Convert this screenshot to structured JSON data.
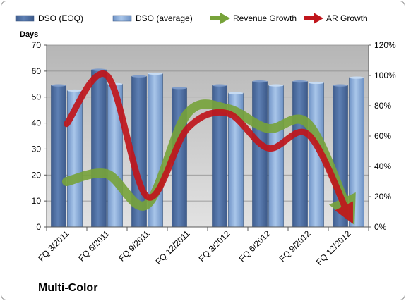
{
  "chart_data": {
    "type": "bar",
    "title": "",
    "footer_label": "Multi-Color",
    "y_left_label": "Days",
    "y_left_lim": [
      0,
      70
    ],
    "y_left_ticks": [
      0,
      10,
      20,
      30,
      40,
      50,
      60,
      70
    ],
    "y_right_lim": [
      0,
      120
    ],
    "y_right_ticks": [
      "0%",
      "20%",
      "40%",
      "60%",
      "80%",
      "100%",
      "120%"
    ],
    "y_right_tick_values": [
      0,
      20,
      40,
      60,
      80,
      100,
      120
    ],
    "grid": true,
    "legend_position": "top",
    "categories": [
      "FQ 3/2011",
      "FQ 6/2011",
      "FQ 9/2011",
      "FQ 12/2011",
      "FQ 3/2012",
      "FQ 6/2012",
      "FQ 9/2012",
      "FQ 12/2012"
    ],
    "bar_series": [
      {
        "name": "DSO (EOQ)",
        "color": "#4f6fa0",
        "values": [
          54.5,
          60.5,
          58,
          53.5,
          54.5,
          56,
          56,
          54.5
        ]
      },
      {
        "name": "DSO (average)",
        "color": "#8fb4e0",
        "values": [
          52.5,
          55,
          59,
          0,
          51.5,
          54.5,
          55.5,
          57.5
        ]
      }
    ],
    "line_series": [
      {
        "name": "Revenue Growth",
        "color": "#77a33a",
        "axis": "right",
        "values": [
          30,
          35,
          15,
          75,
          78,
          65,
          68,
          10
        ]
      },
      {
        "name": "AR Growth",
        "color": "#c0161c",
        "axis": "right",
        "values": [
          68,
          100,
          20,
          65,
          75,
          52,
          61,
          8
        ]
      }
    ]
  }
}
